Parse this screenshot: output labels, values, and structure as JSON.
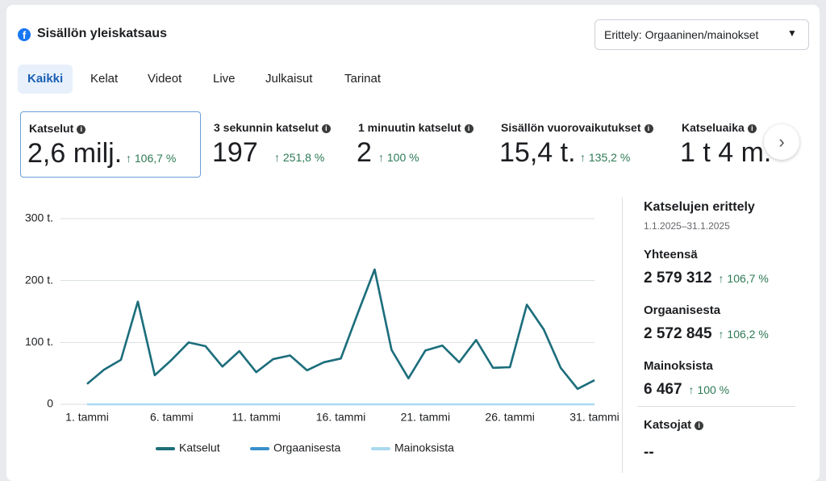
{
  "header": {
    "title": "Sisällön yleiskatsaus",
    "dropdown": "Erittely: Orgaaninen/mainokset"
  },
  "tabs": [
    "Kaikki",
    "Kelat",
    "Videot",
    "Live",
    "Julkaisut",
    "Tarinat"
  ],
  "active_tab": 0,
  "metrics": [
    {
      "label": "Katselut",
      "value": "2,6 milj.",
      "change": "↑ 106,7 %"
    },
    {
      "label": "3 sekunnin katselut",
      "value": "197",
      "change": "↑ 251,8 %"
    },
    {
      "label": "1 minuutin katselut",
      "value": "2",
      "change": "↑ 100 %"
    },
    {
      "label": "Sisällön vuorovaikutukset",
      "value": "15,4 t.",
      "change": "↑ 135,2 %"
    },
    {
      "label": "Katseluaika",
      "value": "1 t 4 m."
    }
  ],
  "breakdown": {
    "title": "Katselujen erittely",
    "range": "1.1.2025–31.1.2025",
    "items": [
      {
        "label": "Yhteensä",
        "value": "2 579 312",
        "change": "↑ 106,7 %"
      },
      {
        "label": "Orgaanisesta",
        "value": "2 572 845",
        "change": "↑ 106,2 %"
      },
      {
        "label": "Mainoksista",
        "value": "6 467",
        "change": "↑ 100 %"
      }
    ],
    "viewers": {
      "label": "Katsojat",
      "value": "--"
    }
  },
  "chart_data": {
    "type": "line",
    "categories": [
      "1. tammi",
      null,
      null,
      null,
      null,
      "6. tammi",
      null,
      null,
      null,
      null,
      "11. tammi",
      null,
      null,
      null,
      null,
      "16. tammi",
      null,
      null,
      null,
      null,
      "21. tammi",
      null,
      null,
      null,
      null,
      "26. tammi",
      null,
      null,
      null,
      null,
      "31. tammi"
    ],
    "series": [
      {
        "name": "Katselut",
        "color": "#1d6e79",
        "values": [
          33000,
          56000,
          72000,
          166000,
          47000,
          72000,
          100000,
          94000,
          61000,
          86000,
          52000,
          73000,
          79000,
          55000,
          68000,
          74000,
          147000,
          218000,
          88000,
          42000,
          87000,
          95000,
          68000,
          104000,
          59000,
          60000,
          161000,
          121000,
          59000,
          25000,
          39000
        ]
      },
      {
        "name": "Orgaanisesta",
        "color": "#3a8fcb",
        "values": [
          33000,
          56000,
          72000,
          166000,
          47000,
          72000,
          100000,
          94000,
          61000,
          86000,
          52000,
          73000,
          79000,
          55000,
          68000,
          74000,
          147000,
          218000,
          88000,
          42000,
          87000,
          95000,
          68000,
          104000,
          59000,
          60000,
          161000,
          121000,
          59000,
          25000,
          39000
        ]
      },
      {
        "name": "Mainoksista",
        "color": "#a9d9ef",
        "values": [
          0,
          0,
          0,
          0,
          0,
          0,
          0,
          0,
          0,
          0,
          0,
          0,
          0,
          0,
          0,
          0,
          0,
          0,
          0,
          0,
          0,
          0,
          0,
          0,
          0,
          0,
          0,
          0,
          0,
          0,
          0
        ]
      }
    ],
    "ylim": [
      0,
      300000
    ],
    "yticks": [
      0,
      {
        "value": 100000,
        "label": "100 t."
      },
      {
        "value": 200000,
        "label": "200 t."
      },
      {
        "value": 300000,
        "label": "300 t."
      }
    ],
    "grid": true
  }
}
